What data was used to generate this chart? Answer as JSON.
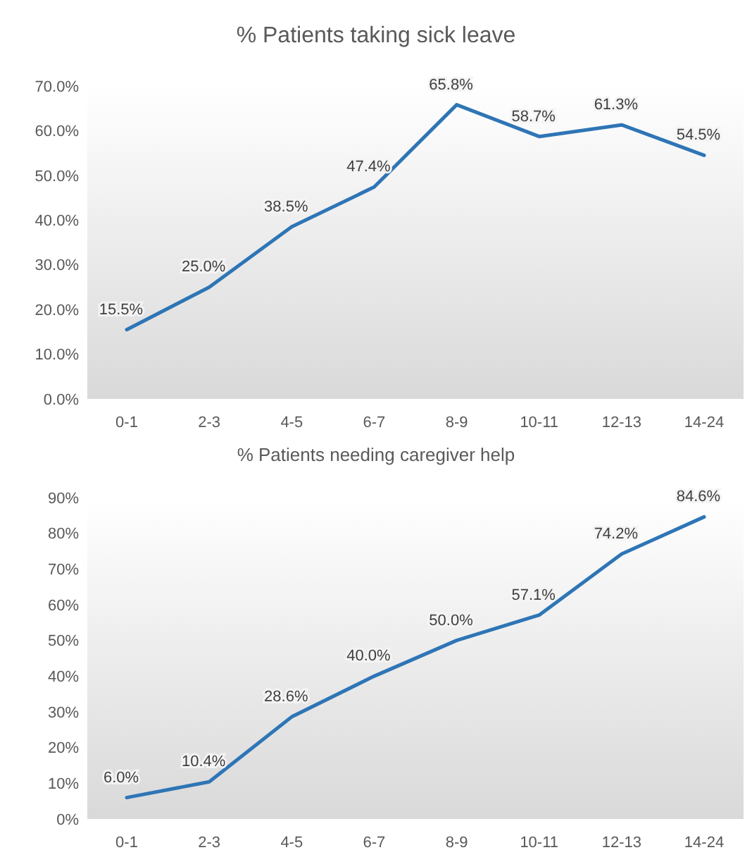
{
  "chart_data": [
    {
      "type": "line",
      "title": "% Patients taking sick leave",
      "categories": [
        "0-1",
        "2-3",
        "4-5",
        "6-7",
        "8-9",
        "10-11",
        "12-13",
        "14-24"
      ],
      "series": [
        {
          "color": "#2e75b6",
          "values": [
            15.5,
            25.0,
            38.5,
            47.4,
            65.8,
            58.7,
            61.3,
            54.5
          ],
          "value_labels": [
            "15.5%",
            "25.0%",
            "38.5%",
            "47.4%",
            "65.8%",
            "58.7%",
            "61.3%",
            "54.5%"
          ]
        }
      ],
      "ylim": [
        0,
        70
      ],
      "yticks": [
        {
          "value": 0,
          "label": "0.0%"
        },
        {
          "value": 10,
          "label": "10.0%"
        },
        {
          "value": 20,
          "label": "20.0%"
        },
        {
          "value": 30,
          "label": "30.0%"
        },
        {
          "value": 40,
          "label": "40.0%"
        },
        {
          "value": 50,
          "label": "50.0%"
        },
        {
          "value": 60,
          "label": "60.0%"
        },
        {
          "value": 70,
          "label": "70.0%"
        }
      ],
      "grid": false,
      "marker": "none",
      "line_style": "solid"
    },
    {
      "type": "line",
      "title": "% Patients needing caregiver help",
      "categories": [
        "0-1",
        "2-3",
        "4-5",
        "6-7",
        "8-9",
        "10-11",
        "12-13",
        "14-24"
      ],
      "series": [
        {
          "color": "#2e75b6",
          "values": [
            6.0,
            10.4,
            28.6,
            40.0,
            50.0,
            57.1,
            74.2,
            84.6
          ],
          "value_labels": [
            "6.0%",
            "10.4%",
            "28.6%",
            "40.0%",
            "50.0%",
            "57.1%",
            "74.2%",
            "84.6%"
          ]
        }
      ],
      "ylim": [
        0,
        90
      ],
      "yticks": [
        {
          "value": 0,
          "label": "0%"
        },
        {
          "value": 10,
          "label": "10%"
        },
        {
          "value": 20,
          "label": "20%"
        },
        {
          "value": 30,
          "label": "30%"
        },
        {
          "value": 40,
          "label": "40%"
        },
        {
          "value": 50,
          "label": "50%"
        },
        {
          "value": 60,
          "label": "60%"
        },
        {
          "value": 70,
          "label": "70%"
        },
        {
          "value": 80,
          "label": "80%"
        },
        {
          "value": 90,
          "label": "90%"
        }
      ],
      "grid": false,
      "marker": "none",
      "line_style": "solid"
    }
  ]
}
